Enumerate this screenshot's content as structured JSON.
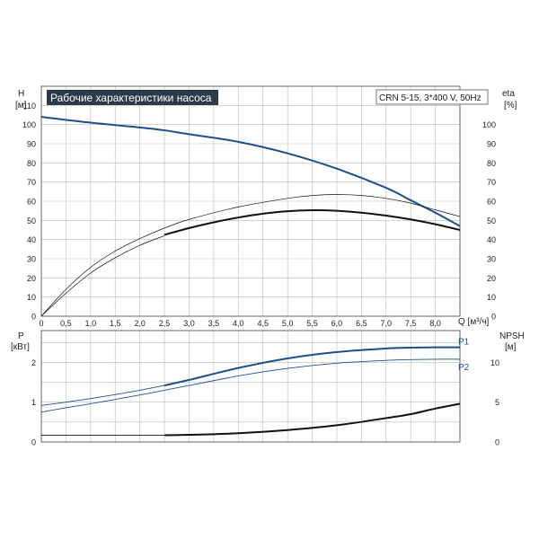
{
  "chart_data": [
    {
      "type": "line",
      "title": "Рабочие характеристики насоса",
      "model_label": "CRN 5-15, 3*400 V, 50Hz",
      "left_axis_name": "H",
      "left_axis_unit": "[м]",
      "right_axis_name": "eta",
      "right_axis_unit": "[%]",
      "xlabel": "Q [м³/ч]",
      "xlim": [
        0,
        8.5
      ],
      "ylim": [
        0,
        120
      ],
      "x_ticks": [
        "0",
        "0,5",
        "1,0",
        "1,5",
        "2,0",
        "2,5",
        "3,0",
        "3,5",
        "4,0",
        "4,5",
        "5,0",
        "5,5",
        "6,0",
        "6,5",
        "7,0",
        "7,5",
        "8,0"
      ],
      "y_ticks_left": [
        "0",
        "10",
        "20",
        "30",
        "40",
        "50",
        "60",
        "70",
        "80",
        "90",
        "100",
        "110"
      ],
      "y_ticks_right": [
        "0",
        "10",
        "20",
        "30",
        "40",
        "50",
        "60",
        "70",
        "80",
        "90",
        "100"
      ],
      "grid": true,
      "colors": {
        "head": "#1d4f8c",
        "efficiency": "#111111",
        "grid": "#bbbbbb"
      },
      "series": [
        {
          "key": "head",
          "x": [
            0,
            1,
            2,
            2.5,
            3,
            4,
            5,
            6,
            7,
            7.5,
            8,
            8.5
          ],
          "y": [
            104,
            101,
            98.5,
            97,
            95,
            91,
            85,
            77,
            67,
            60.5,
            54,
            47
          ]
        },
        {
          "key": "eta_1",
          "x": [
            0,
            0.5,
            1,
            1.5,
            2,
            2.5,
            3,
            4,
            5,
            5.5,
            6,
            6.5,
            7,
            7.5,
            8,
            8.5
          ],
          "y": [
            0,
            14,
            25.5,
            34,
            40.5,
            46,
            50.5,
            57,
            61.5,
            63,
            63.5,
            63,
            61.5,
            59,
            55.5,
            52
          ]
        },
        {
          "key": "eta_2",
          "x": [
            0,
            0.5,
            1,
            1.5,
            2,
            2.5
          ],
          "y": [
            0,
            12,
            22.5,
            30.5,
            37,
            42
          ]
        },
        {
          "key": "eta_3",
          "x": [
            2.5,
            3,
            3.5,
            4,
            4.5,
            5,
            5.5,
            6,
            6.5,
            7,
            7.5,
            8,
            8.5
          ],
          "y": [
            42.5,
            46,
            49,
            51.5,
            53.5,
            54.8,
            55.3,
            55,
            54,
            52.5,
            50.5,
            48,
            45
          ]
        }
      ]
    },
    {
      "type": "line",
      "left_axis_name": "P",
      "left_axis_unit": "[кВт]",
      "right_axis_name": "NPSH",
      "right_axis_unit": "[м]",
      "xlim": [
        0,
        8.5
      ],
      "ylim_left": [
        0,
        2.8
      ],
      "ylim_right": [
        0,
        14
      ],
      "y_ticks_left": [
        "0",
        "1",
        "2"
      ],
      "y_ticks_right": [
        "0",
        "5",
        "10"
      ],
      "grid": true,
      "colors": {
        "power": "#1d4f8c",
        "npsh": "#111111"
      },
      "series": [
        {
          "name": "P1",
          "axis": "left",
          "x": [
            0,
            0.5,
            1,
            1.5,
            2,
            2.5,
            3,
            4,
            5,
            6,
            7,
            7.5,
            8,
            8.5
          ],
          "y": [
            0.92,
            1.0,
            1.09,
            1.19,
            1.3,
            1.42,
            1.56,
            1.86,
            2.1,
            2.26,
            2.35,
            2.37,
            2.38,
            2.38
          ]
        },
        {
          "name": "P2",
          "axis": "left",
          "x": [
            0,
            0.5,
            1,
            1.5,
            2,
            2.5,
            3,
            4,
            5,
            6,
            7,
            7.5,
            8,
            8.5
          ],
          "y": [
            0.75,
            0.86,
            0.96,
            1.07,
            1.18,
            1.3,
            1.42,
            1.66,
            1.85,
            1.98,
            2.05,
            2.07,
            2.08,
            2.08
          ]
        },
        {
          "key": "npsh",
          "axis": "right",
          "x": [
            0,
            1,
            2,
            2.5,
            3,
            4,
            5,
            6,
            7,
            7.5,
            8,
            8.5
          ],
          "y": [
            0.85,
            0.85,
            0.85,
            0.85,
            0.9,
            1.1,
            1.5,
            2.1,
            3.0,
            3.5,
            4.2,
            4.8
          ]
        }
      ]
    }
  ]
}
